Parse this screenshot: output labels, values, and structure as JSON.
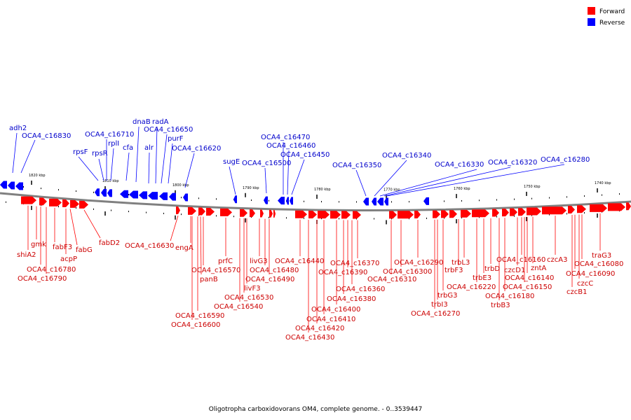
{
  "caption": "Oligotropha carboxidovorans OM4, complete genome. - 0..3539447",
  "legend": [
    {
      "label": "Forward",
      "color": "#ff0000"
    },
    {
      "label": "Reverse",
      "color": "#0000ff"
    }
  ],
  "colors": {
    "forward": "#ff0000",
    "reverse": "#0000ff",
    "forward_text": "#cc0000",
    "reverse_text": "#0000cc",
    "backbone": "#808080"
  },
  "scale_ticks": [
    "1820 kbp",
    "1810 kbp",
    "1800 kbp",
    "1790 kbp",
    "1780 kbp",
    "1770 kbp",
    "1760 kbp",
    "1750 kbp",
    "1740 kbp"
  ],
  "reverse_labels": [
    "adh2",
    "OCA4_c16830",
    "rpsF",
    "rpsR",
    "OCA4_c16710",
    "rplI",
    "cfa",
    "dnaB",
    "radA",
    "alr",
    "OCA4_c16650",
    "purF",
    "OCA4_c16620",
    "sugE",
    "OCA4_c16500",
    "OCA4_c16470",
    "OCA4_c16460",
    "OCA4_c16450",
    "OCA4_c16350",
    "OCA4_c16340",
    "OCA4_c16330",
    "OCA4_c16320",
    "OCA4_c16280"
  ],
  "forward_labels": [
    "shiA2",
    "gmk",
    "fabF3",
    "acpP",
    "fabG",
    "fabD2",
    "OCA4_c16780",
    "OCA4_c16790",
    "OCA4_c16630",
    "engA",
    "prfC",
    "OCA4_c16570",
    "panB",
    "OCA4_c16590",
    "OCA4_c16600",
    "livG3",
    "OCA4_c16480",
    "OCA4_c16490",
    "livF3",
    "OCA4_c16530",
    "OCA4_c16540",
    "OCA4_c16440",
    "OCA4_c16370",
    "OCA4_c16390",
    "OCA4_c16360",
    "OCA4_c16380",
    "OCA4_c16400",
    "OCA4_c16410",
    "OCA4_c16420",
    "OCA4_c16430",
    "OCA4_c16290",
    "OCA4_c16300",
    "OCA4_c16310",
    "trbL3",
    "trbF3",
    "trbG3",
    "trbI3",
    "OCA4_c16270",
    "trbE3",
    "OCA4_c16220",
    "trbD",
    "OCA4_c16160",
    "czcD1",
    "zntA",
    "czcA3",
    "OCA4_c16140",
    "OCA4_c16150",
    "OCA4_c16180",
    "trbB3",
    "OCA4_c16080",
    "OCA4_c16090",
    "czcC",
    "czcB1",
    "traG3"
  ]
}
